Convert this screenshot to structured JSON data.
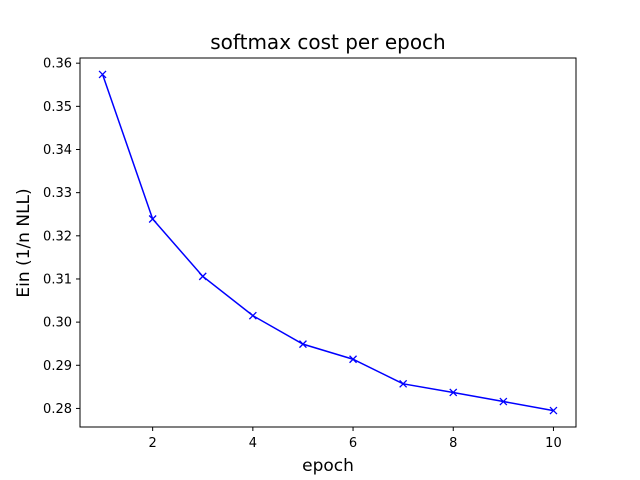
{
  "chart_data": {
    "type": "line",
    "title": "softmax cost per epoch",
    "xlabel": "epoch",
    "ylabel": "Ein (1/n NLL)",
    "xlim": [
      0.55,
      10.45
    ],
    "ylim": [
      0.2757,
      0.3612
    ],
    "xticks": [
      2,
      4,
      6,
      8,
      10
    ],
    "yticks": [
      0.28,
      0.29,
      0.3,
      0.31,
      0.32,
      0.33,
      0.34,
      0.35,
      0.36
    ],
    "ytick_labels": [
      "0.28",
      "0.29",
      "0.30",
      "0.31",
      "0.32",
      "0.33",
      "0.34",
      "0.35",
      "0.36"
    ],
    "grid": false,
    "series": [
      {
        "color": "#0000ff",
        "marker": "x",
        "x": [
          1,
          2,
          3,
          4,
          5,
          6,
          7,
          8,
          9,
          10
        ],
        "values": [
          0.3574,
          0.3239,
          0.3106,
          0.3015,
          0.2949,
          0.2914,
          0.2857,
          0.2837,
          0.2816,
          0.2795
        ]
      }
    ]
  }
}
